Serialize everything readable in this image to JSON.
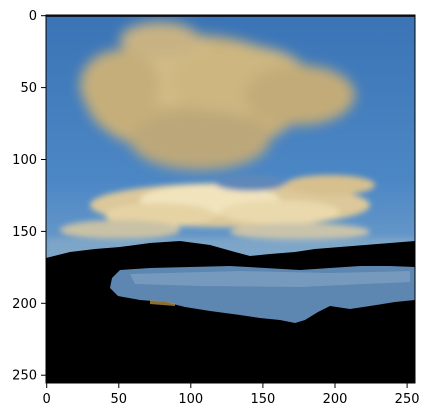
{
  "axes": {
    "x_ticks": [
      "0",
      "50",
      "100",
      "150",
      "200",
      "250"
    ],
    "y_ticks": [
      "0",
      "50",
      "100",
      "150",
      "200",
      "250"
    ],
    "x_range": [
      0,
      256
    ],
    "y_range": [
      0,
      256
    ]
  },
  "image": {
    "description_colors": {
      "sky_top": "#3d79bb",
      "sky_mid": "#4d88c6",
      "sky_horizon": "#6f9ec9",
      "cloud_tan": "#c8b27e",
      "cloud_light": "#ead7a8",
      "cloud_highlight": "#f4e8c4",
      "land": "#000000",
      "water": "#5f88b3"
    }
  }
}
